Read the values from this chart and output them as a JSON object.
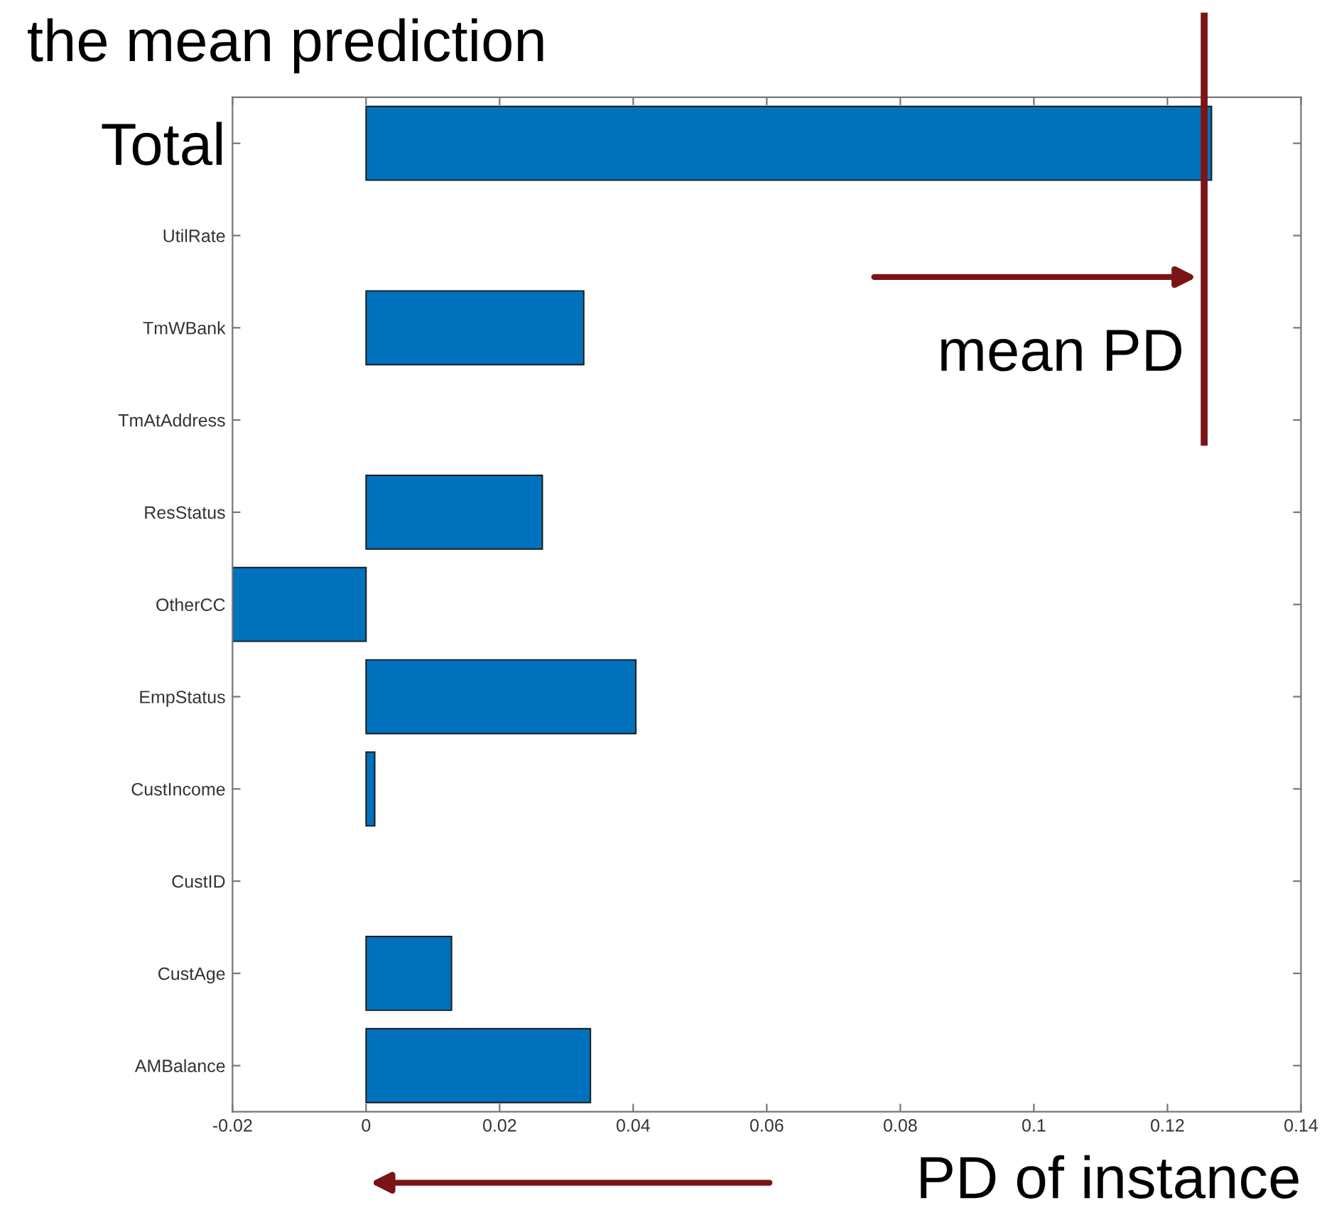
{
  "chart_data": {
    "type": "bar",
    "orientation": "horizontal",
    "title": "the mean prediction",
    "categories": [
      "Total",
      "UtilRate",
      "TmWBank",
      "TmAtAddress",
      "ResStatus",
      "OtherCC",
      "EmpStatus",
      "CustIncome",
      "CustID",
      "CustAge",
      "AMBalance"
    ],
    "values": [
      0.1266,
      0,
      0.0326,
      0,
      0.0264,
      -0.02,
      0.0404,
      0.0013,
      0,
      0.0128,
      0.0336
    ],
    "color": "#0072bd",
    "xlim": [
      -0.02,
      0.14
    ],
    "xticks": [
      -0.02,
      0,
      0.02,
      0.04,
      0.06,
      0.08,
      0.1,
      0.12,
      0.14
    ],
    "ref_lines": [
      {
        "axis": "x",
        "value": 0.1255,
        "label": "mean PD",
        "color": "#7b1416"
      }
    ],
    "annotations": [
      "PD of instance"
    ],
    "grid": false,
    "legend": false
  }
}
